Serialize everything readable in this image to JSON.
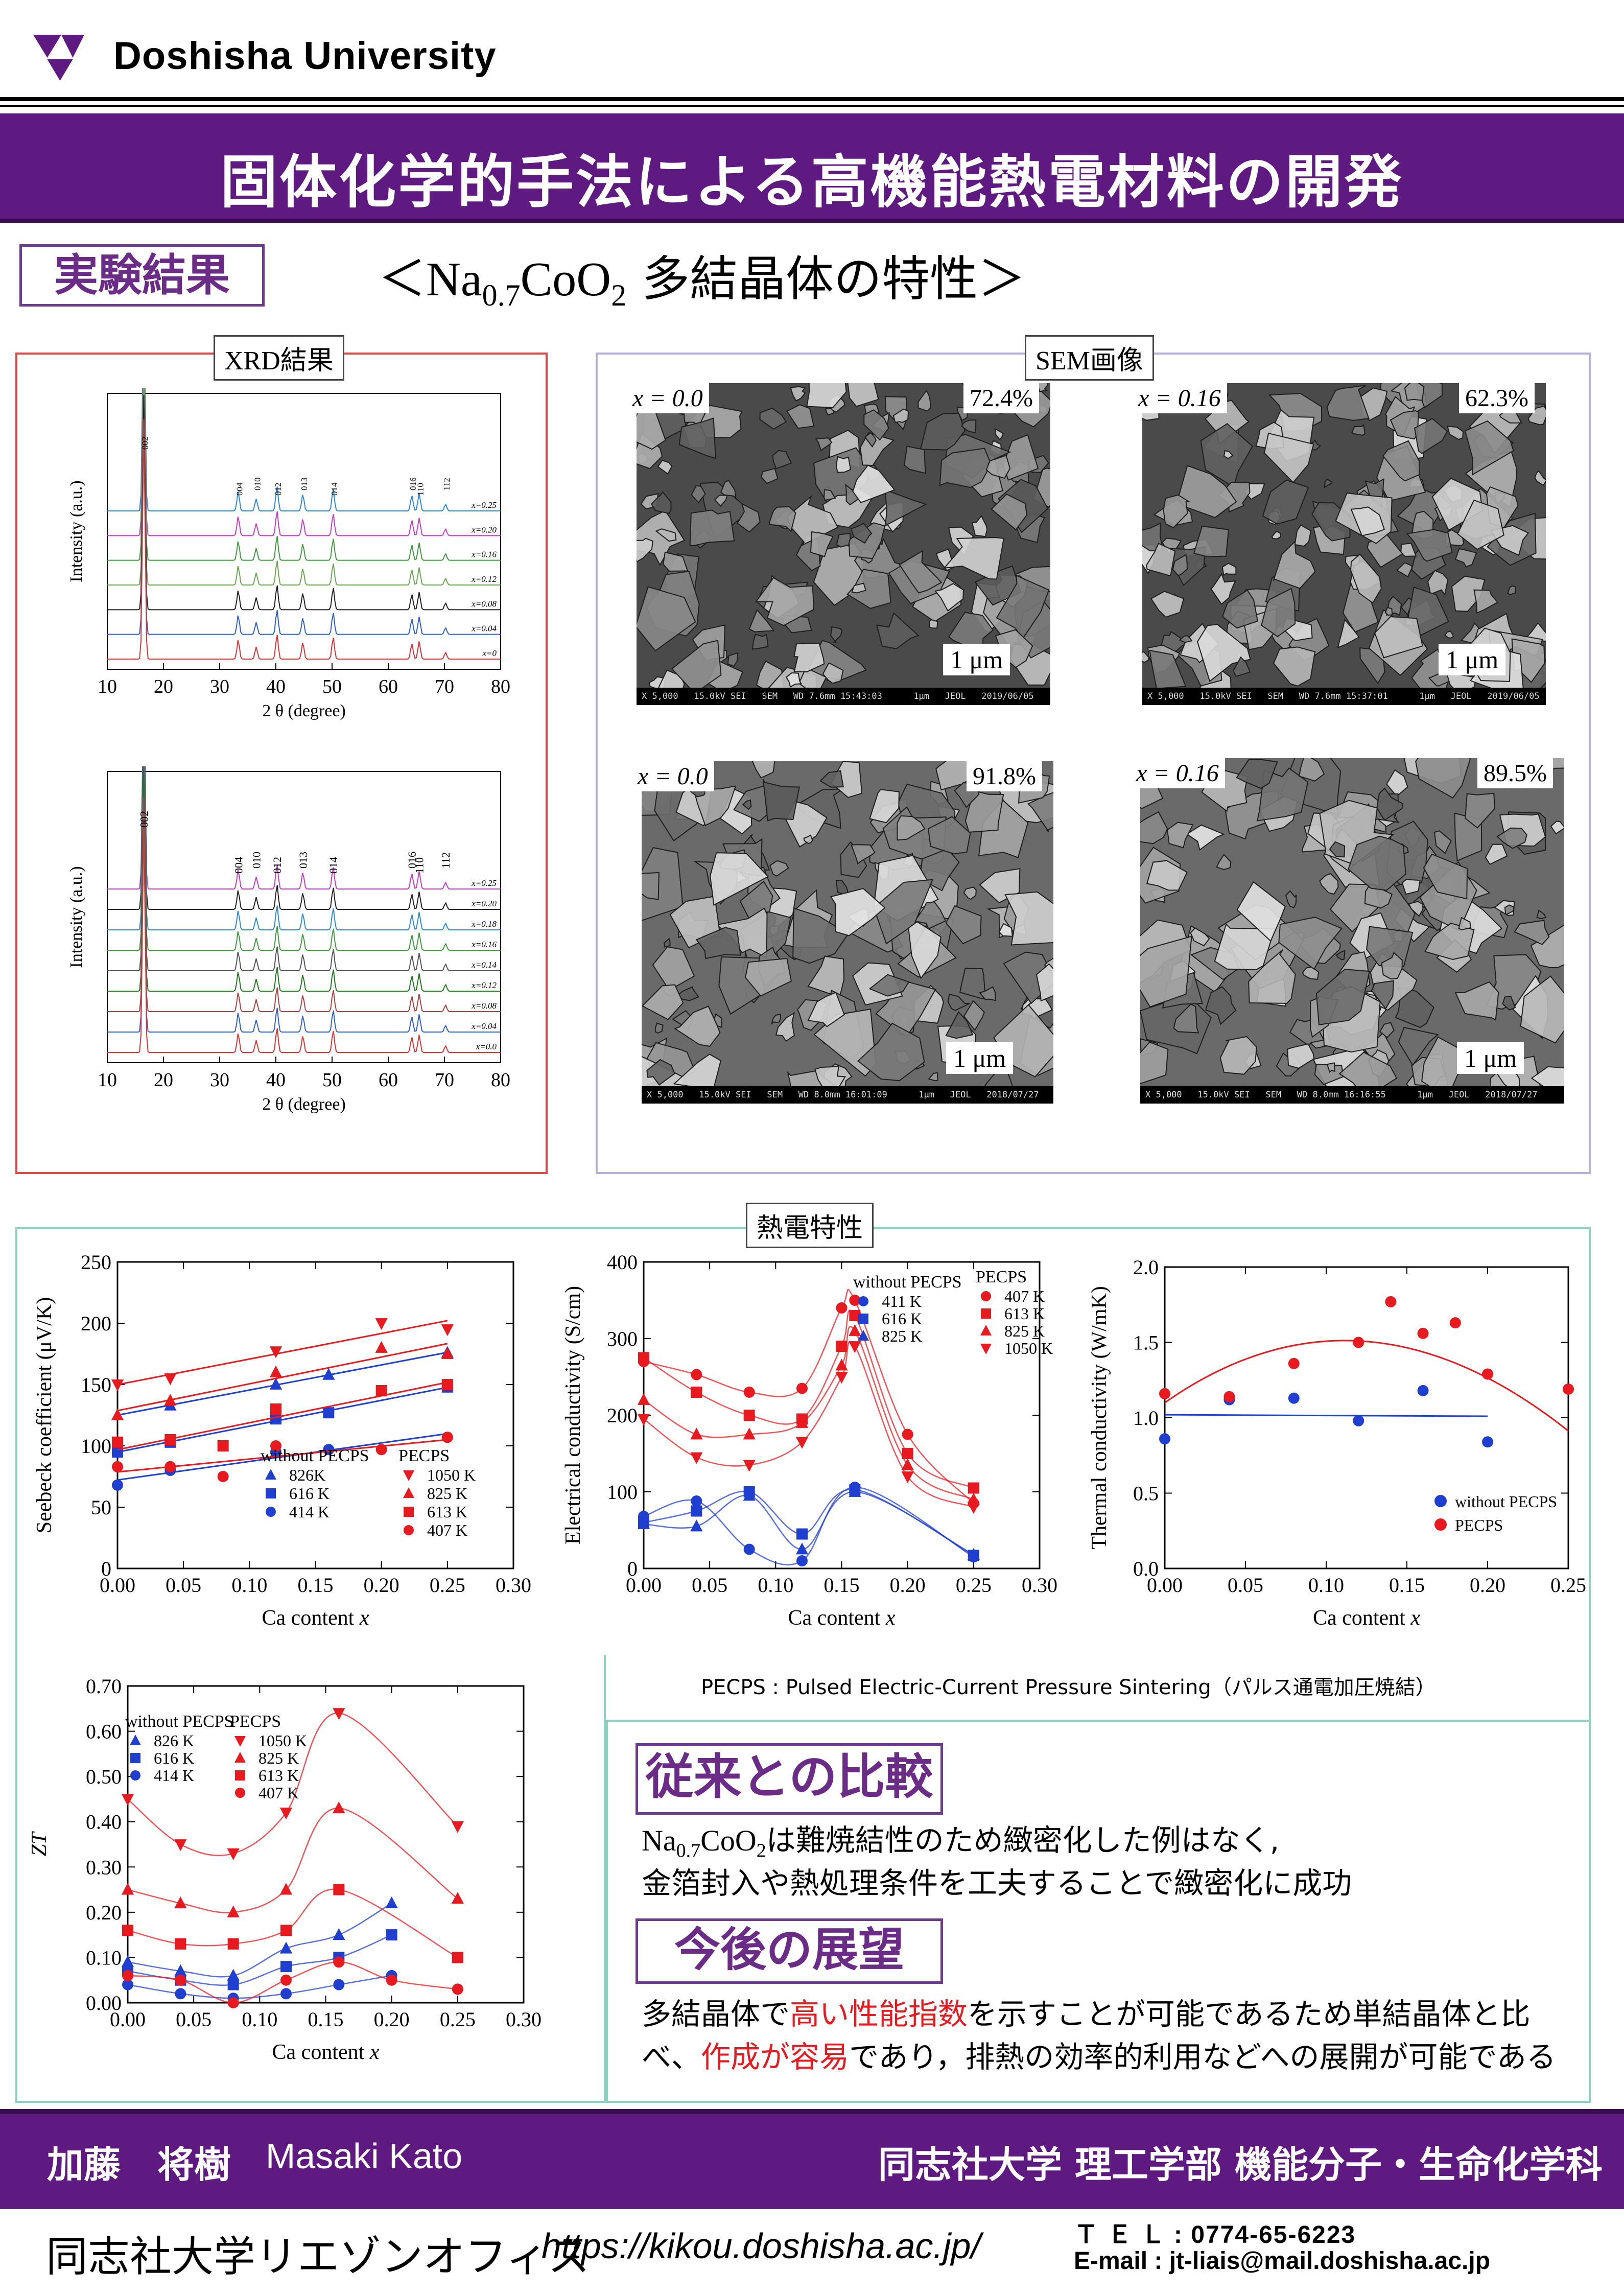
{
  "header": {
    "university": "Doshisha University",
    "title": "固体化学的手法による高機能熱電材料の開発"
  },
  "results": {
    "tag": "実験結果",
    "subtitle_pre": "＜Na",
    "subtitle_sub1": "0.7",
    "subtitle_mid": "CoO",
    "subtitle_sub2": "2",
    "subtitle_post": " 多結晶体の特性＞"
  },
  "xrd": {
    "label": "XRD結果",
    "charts": [
      {
        "ylabel": "Intensity (a.u.)",
        "xlabel": "2 θ (degree)",
        "xticks": [
          "10",
          "20",
          "30",
          "40",
          "50",
          "60",
          "70",
          "80"
        ],
        "peaks": [
          "002",
          "004",
          "010",
          "012",
          "013",
          "014",
          "016",
          "110",
          "112"
        ],
        "traces": [
          "x=0.25",
          "x=0.20",
          "x=0.16",
          "x=0.12",
          "x=0.08",
          "x=0.04",
          "x=0"
        ],
        "colors": [
          "#2a8adf",
          "#c83cc8",
          "#3d9c3d",
          "#6aa84f",
          "#222222",
          "#2c5fd4",
          "#e03232"
        ]
      },
      {
        "ylabel": "Intensity (a.u.)",
        "xlabel": "2 θ (degree)",
        "xticks": [
          "10",
          "20",
          "30",
          "40",
          "50",
          "60",
          "70",
          "80"
        ],
        "peaks": [
          "002",
          "004",
          "010",
          "012",
          "013",
          "014",
          "016",
          "110",
          "112"
        ],
        "traces": [
          "x=0.25",
          "x=0.20",
          "x=0.18",
          "x=0.16",
          "x=0.14",
          "x=0.12",
          "x=0.08",
          "x=0.04",
          "x=0.0"
        ],
        "colors": [
          "#c83cc8",
          "#222222",
          "#2a8adf",
          "#3d9c3d",
          "#555555",
          "#1d7a1d",
          "#b04040",
          "#2c5fd4",
          "#e03232"
        ]
      }
    ]
  },
  "sem": {
    "label": "SEM画像",
    "images": [
      {
        "x": "x = 0.0",
        "density": "72.4%",
        "scale": "1 μm",
        "bar": "X 5,000   15.0kV SEI   SEM   WD 7.6mm 15:43:03",
        "date": "1μm   JEOL   2019/06/05"
      },
      {
        "x": "x = 0.16",
        "density": "62.3%",
        "scale": "1 μm",
        "bar": "X 5,000   15.0kV SEI   SEM   WD 7.6mm 15:37:01",
        "date": "1μm   JEOL   2019/06/05"
      },
      {
        "x": "x = 0.0",
        "density": "91.8%",
        "scale": "1 μm",
        "bar": "X 5,000   15.0kV SEI   SEM   WD 8.0mm 16:01:09",
        "date": "1μm   JEOL   2018/07/27"
      },
      {
        "x": "x = 0.16",
        "density": "89.5%",
        "scale": "1 μm",
        "bar": "X 5,000   15.0kV SEI   SEM   WD 8.0mm 16:16:55",
        "date": "1μm   JEOL   2018/07/27"
      }
    ]
  },
  "thermo": {
    "label": "熱電特性",
    "pecps_note": "PECPS : Pulsed Electric-Current Pressure Sintering（パルス通電加圧焼結）"
  },
  "chart_data": [
    {
      "type": "scatter",
      "ylabel": "Seebeck coefficient (μV/K)",
      "xlabel": "Ca content x",
      "xlim": [
        0,
        0.3
      ],
      "ylim": [
        0,
        250
      ],
      "xticks": [
        "0.00",
        "0.05",
        "0.10",
        "0.15",
        "0.20",
        "0.25",
        "0.30"
      ],
      "yticks": [
        "0",
        "50",
        "100",
        "150",
        "200",
        "250"
      ],
      "legend_left_title": "without PECPS",
      "legend_right_title": "PECPS",
      "series": [
        {
          "name": "826K",
          "color": "#1f3fd0",
          "marker": "tri",
          "x": [
            0,
            0.04,
            0.12,
            0.16,
            0.25
          ],
          "y": [
            125,
            133,
            150,
            158,
            176
          ]
        },
        {
          "name": "616 K",
          "color": "#1f3fd0",
          "marker": "sq",
          "x": [
            0,
            0.04,
            0.12,
            0.16,
            0.25
          ],
          "y": [
            95,
            103,
            122,
            127,
            148
          ]
        },
        {
          "name": "414 K",
          "color": "#1f3fd0",
          "marker": "circ",
          "x": [
            0,
            0.04,
            0.12,
            0.16,
            0.25
          ],
          "y": [
            68,
            80,
            95,
            97,
            107
          ]
        },
        {
          "name": "1050 K",
          "color": "#e8191f",
          "marker": "tridown",
          "x": [
            0,
            0.04,
            0.12,
            0.2,
            0.25
          ],
          "y": [
            150,
            155,
            177,
            200,
            195
          ]
        },
        {
          "name": "825 K",
          "color": "#e8191f",
          "marker": "tri",
          "x": [
            0,
            0.04,
            0.12,
            0.2,
            0.25
          ],
          "y": [
            125,
            137,
            160,
            180,
            175
          ]
        },
        {
          "name": "613 K",
          "color": "#e8191f",
          "marker": "sq",
          "x": [
            0,
            0.04,
            0.08,
            0.12,
            0.2,
            0.25
          ],
          "y": [
            103,
            105,
            100,
            130,
            145,
            150
          ]
        },
        {
          "name": "407 K",
          "color": "#e8191f",
          "marker": "circ",
          "x": [
            0,
            0.04,
            0.08,
            0.12,
            0.2,
            0.25
          ],
          "y": [
            83,
            83,
            75,
            100,
            97,
            107
          ]
        }
      ]
    },
    {
      "type": "line",
      "ylabel": "Electrical conductivity (S/cm)",
      "xlabel": "Ca content x",
      "xlim": [
        0,
        0.3
      ],
      "ylim": [
        0,
        400
      ],
      "xticks": [
        "0.00",
        "0.05",
        "0.10",
        "0.15",
        "0.20",
        "0.25",
        "0.30"
      ],
      "yticks": [
        "0",
        "100",
        "200",
        "300",
        "400"
      ],
      "legend_left_title": "without PECPS",
      "legend_right_title": "PECPS",
      "series": [
        {
          "name": "411 K",
          "color": "#1f3fd0",
          "marker": "circ",
          "x": [
            0,
            0.04,
            0.08,
            0.12,
            0.16,
            0.25
          ],
          "y": [
            68,
            88,
            25,
            10,
            106,
            15
          ]
        },
        {
          "name": "616 K",
          "color": "#1f3fd0",
          "marker": "sq",
          "x": [
            0,
            0.04,
            0.08,
            0.12,
            0.16,
            0.25
          ],
          "y": [
            60,
            75,
            100,
            45,
            103,
            17
          ]
        },
        {
          "name": "825 K",
          "color": "#1f3fd0",
          "marker": "tri",
          "x": [
            0,
            0.04,
            0.08,
            0.12,
            0.16,
            0.25
          ],
          "y": [
            58,
            55,
            95,
            25,
            100,
            18
          ]
        },
        {
          "name": "407 K",
          "color": "#e8191f",
          "marker": "circ",
          "x": [
            0,
            0.04,
            0.08,
            0.12,
            0.15,
            0.16,
            0.2,
            0.25
          ],
          "y": [
            270,
            253,
            230,
            235,
            340,
            350,
            175,
            85
          ]
        },
        {
          "name": "613 K",
          "color": "#e8191f",
          "marker": "sq",
          "x": [
            0,
            0.04,
            0.08,
            0.12,
            0.15,
            0.16,
            0.2,
            0.25
          ],
          "y": [
            275,
            230,
            200,
            195,
            290,
            330,
            150,
            105
          ]
        },
        {
          "name": "825 K",
          "color": "#e8191f",
          "marker": "tri",
          "x": [
            0,
            0.04,
            0.08,
            0.12,
            0.15,
            0.16,
            0.2,
            0.25
          ],
          "y": [
            220,
            175,
            175,
            190,
            265,
            310,
            135,
            90
          ]
        },
        {
          "name": "1050 K",
          "color": "#e8191f",
          "marker": "tridown",
          "x": [
            0,
            0.04,
            0.08,
            0.12,
            0.15,
            0.16,
            0.2,
            0.25
          ],
          "y": [
            195,
            145,
            135,
            165,
            250,
            290,
            120,
            80
          ]
        }
      ]
    },
    {
      "type": "scatter",
      "ylabel": "Thermal conductivity (W/mK)",
      "xlabel": "Ca content x",
      "xlim": [
        0,
        0.25
      ],
      "ylim": [
        0,
        2.0
      ],
      "xticks": [
        "0.00",
        "0.05",
        "0.10",
        "0.15",
        "0.20",
        "0.25"
      ],
      "yticks": [
        "0.0",
        "0.5",
        "1.0",
        "1.5",
        "2.0"
      ],
      "series": [
        {
          "name": "without PECPS",
          "color": "#1f3fd0",
          "marker": "circ",
          "x": [
            0,
            0.04,
            0.08,
            0.12,
            0.16,
            0.2
          ],
          "y": [
            0.86,
            1.12,
            1.13,
            0.98,
            1.18,
            0.84
          ]
        },
        {
          "name": "PECPS",
          "color": "#e8191f",
          "marker": "circ",
          "x": [
            0,
            0.04,
            0.08,
            0.12,
            0.14,
            0.16,
            0.18,
            0.2,
            0.25
          ],
          "y": [
            1.16,
            1.14,
            1.36,
            1.5,
            1.77,
            1.56,
            1.63,
            1.29,
            1.19
          ]
        }
      ]
    },
    {
      "type": "line",
      "ylabel": "ZT",
      "xlabel": "Ca content x",
      "xlim": [
        0,
        0.3
      ],
      "ylim": [
        0,
        0.7
      ],
      "xticks": [
        "0.00",
        "0.05",
        "0.10",
        "0.15",
        "0.20",
        "0.25",
        "0.30"
      ],
      "yticks": [
        "0.00",
        "0.10",
        "0.20",
        "0.30",
        "0.40",
        "0.50",
        "0.60",
        "0.70"
      ],
      "legend_left_title": "without PECPS",
      "legend_right_title": "PECPS",
      "series": [
        {
          "name": "826 K",
          "color": "#1f3fd0",
          "marker": "tri",
          "x": [
            0,
            0.04,
            0.08,
            0.12,
            0.16,
            0.2
          ],
          "y": [
            0.09,
            0.07,
            0.06,
            0.12,
            0.15,
            0.22
          ]
        },
        {
          "name": "616 K",
          "color": "#1f3fd0",
          "marker": "sq",
          "x": [
            0,
            0.04,
            0.08,
            0.12,
            0.16,
            0.2
          ],
          "y": [
            0.07,
            0.05,
            0.04,
            0.08,
            0.1,
            0.15
          ]
        },
        {
          "name": "414 K",
          "color": "#1f3fd0",
          "marker": "circ",
          "x": [
            0,
            0.04,
            0.08,
            0.12,
            0.16,
            0.2
          ],
          "y": [
            0.04,
            0.02,
            0.01,
            0.02,
            0.04,
            0.06
          ]
        },
        {
          "name": "1050 K",
          "color": "#e8191f",
          "marker": "tridown",
          "x": [
            0,
            0.04,
            0.08,
            0.12,
            0.16,
            0.25
          ],
          "y": [
            0.45,
            0.35,
            0.33,
            0.42,
            0.64,
            0.39
          ]
        },
        {
          "name": "825 K",
          "color": "#e8191f",
          "marker": "tri",
          "x": [
            0,
            0.04,
            0.08,
            0.12,
            0.16,
            0.25
          ],
          "y": [
            0.25,
            0.22,
            0.2,
            0.25,
            0.43,
            0.23
          ]
        },
        {
          "name": "613 K",
          "color": "#e8191f",
          "marker": "sq",
          "x": [
            0,
            0.04,
            0.08,
            0.12,
            0.16,
            0.25
          ],
          "y": [
            0.16,
            0.13,
            0.13,
            0.16,
            0.25,
            0.1
          ]
        },
        {
          "name": "407 K",
          "color": "#e8191f",
          "marker": "circ",
          "x": [
            0,
            0.04,
            0.08,
            0.12,
            0.16,
            0.2,
            0.25
          ],
          "y": [
            0.06,
            0.05,
            0.0,
            0.05,
            0.09,
            0.05,
            0.03
          ]
        }
      ]
    }
  ],
  "compare": {
    "tag": "従来との比較",
    "line1_pre": "Na",
    "line1_sub1": "0.7",
    "line1_mid": "CoO",
    "line1_sub2": "2",
    "line1_post": "は難焼結性のため緻密化した例はなく,",
    "line2": "金箔封入や熱処理条件を工夫することで緻密化に成功"
  },
  "future": {
    "tag": "今後の展望",
    "l1_a": "多結晶体で",
    "l1_b": "高い性能指数",
    "l1_c": "を示すことが可能であるため単結晶体と比",
    "l2_a": "べ、",
    "l2_b": "作成が容易",
    "l2_c": "であり，排熱の効率的利用などへの展開が可能である"
  },
  "footer": {
    "author": "加藤　将樹",
    "author_en": "Masaki Kato",
    "department": "同志社大学 理工学部 機能分子・生命化学科",
    "office": "同志社大学リエゾンオフィス",
    "url": "https://kikou.doshisha.ac.jp/",
    "tel": "Ｔ Ｅ Ｌ : 0774-65-6223",
    "email": "E-mail : jt-liais@mail.doshisha.ac.jp"
  },
  "colors": {
    "brand_purple": "#5e1a80",
    "accent_red": "#e8191f",
    "series_blue": "#1f3fd0"
  }
}
